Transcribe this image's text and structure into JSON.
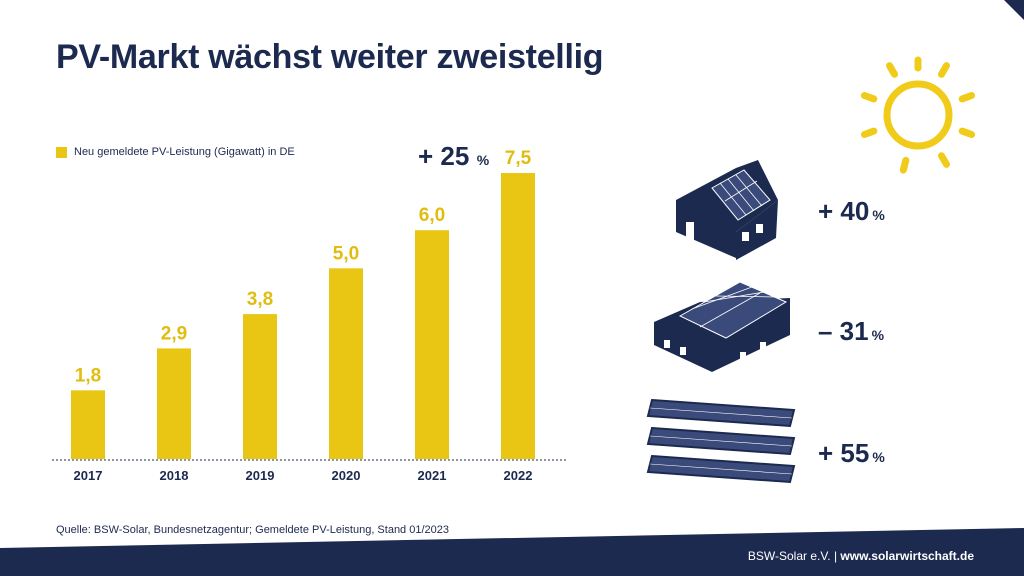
{
  "title": "PV-Markt wächst weiter zweistellig",
  "legend_label": "Neu gemeldete PV-Leistung (Gigawatt) in DE",
  "source": "Quelle: BSW-Solar, Bundesnetzagentur; Gemeldete PV-Leistung, Stand 01/2023",
  "footer": {
    "org": "BSW-Solar e.V.",
    "separator": " | ",
    "url": "www.solarwirtschaft.de"
  },
  "highlight": {
    "num": "+ 25",
    "pct": "%"
  },
  "segments": [
    {
      "name": "residential",
      "num": "+ 40",
      "pct": "%"
    },
    {
      "name": "commercial",
      "num": "– 31",
      "pct": "%"
    },
    {
      "name": "ground-mounted",
      "num": "+ 55",
      "pct": "%"
    }
  ],
  "colors": {
    "bar": "#e8c613",
    "navy": "#1d2a4f",
    "label": "#e0bd10",
    "panel": "#3a4a7a"
  },
  "chart_data": {
    "type": "bar",
    "title": "PV-Markt wächst weiter zweistellig",
    "categories": [
      "2017",
      "2018",
      "2019",
      "2020",
      "2021",
      "2022"
    ],
    "series": [
      {
        "name": "Neu gemeldete PV-Leistung (Gigawatt) in DE",
        "values": [
          1.8,
          2.9,
          3.8,
          5.0,
          6.0,
          7.5
        ],
        "labels": [
          "1,8",
          "2,9",
          "3,8",
          "5,0",
          "6,0",
          "7,5"
        ]
      }
    ],
    "xlabel": "",
    "ylabel": "",
    "ylim": [
      0,
      7.5
    ],
    "grid": false,
    "legend": "top-left"
  }
}
